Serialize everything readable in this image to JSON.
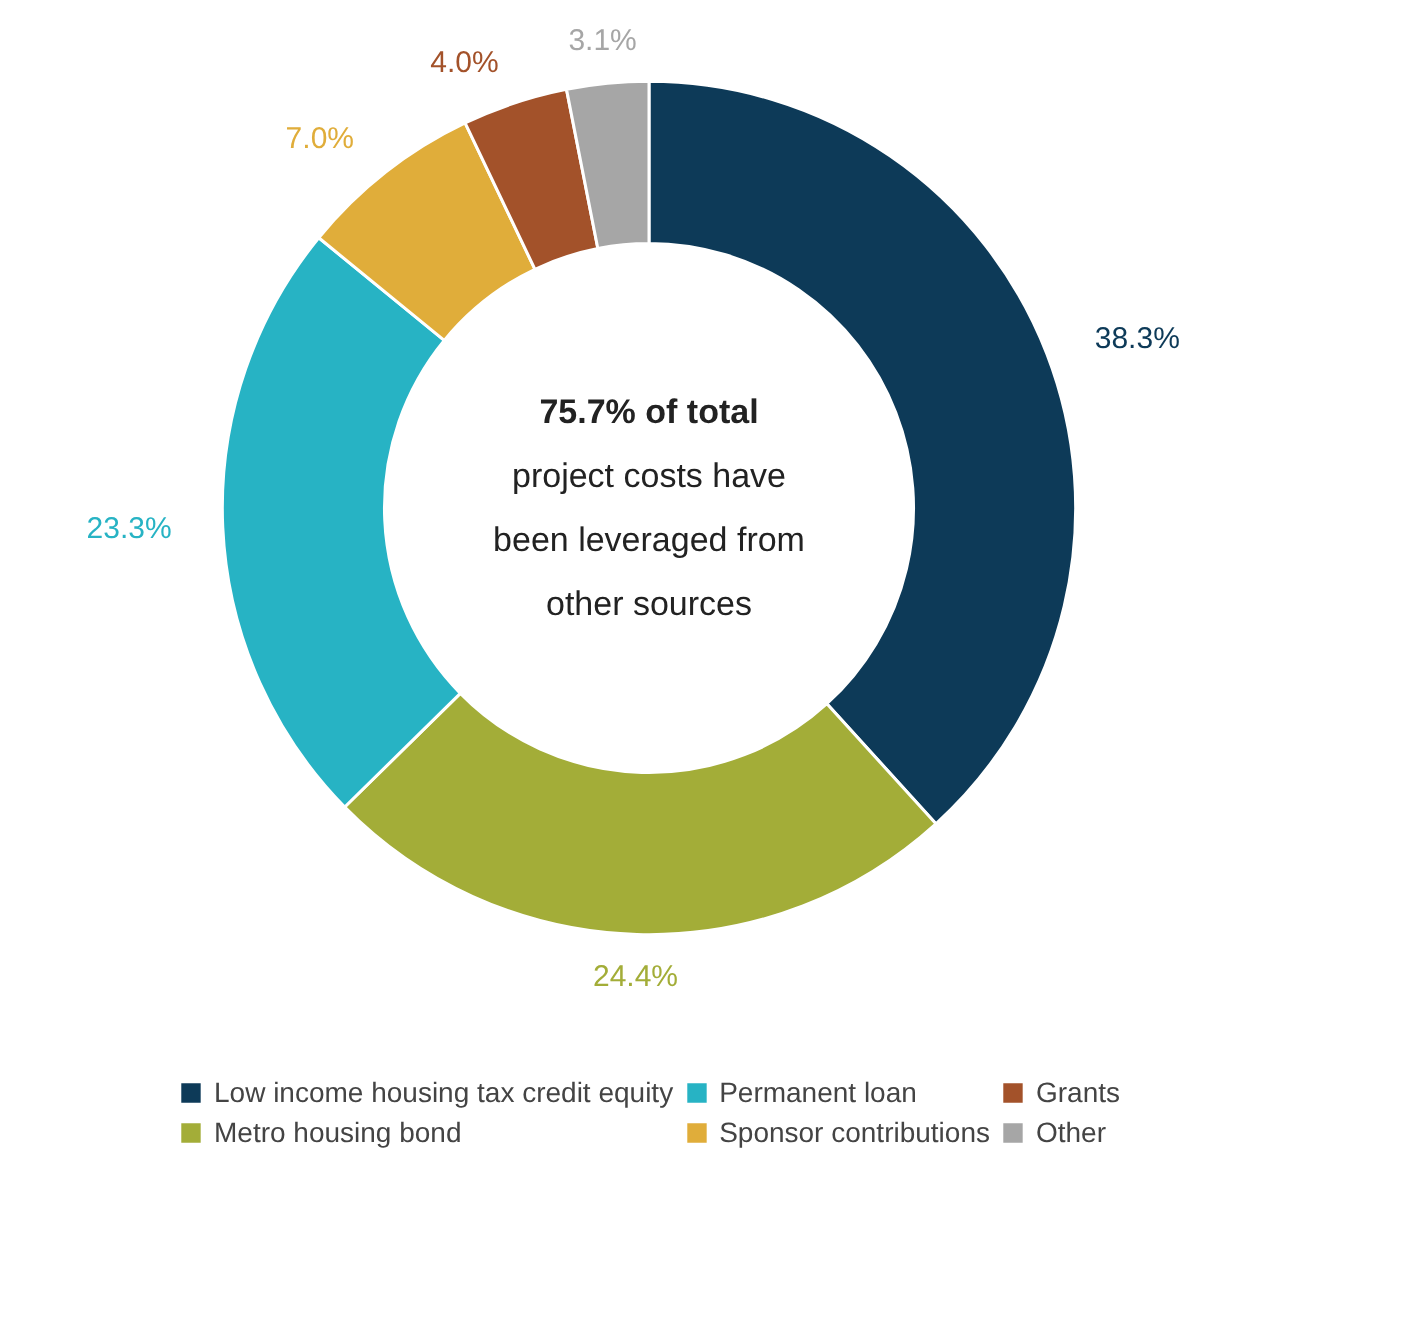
{
  "chart_data": {
    "type": "donut",
    "categories": [
      "Low income housing tax credit equity",
      "Metro housing bond",
      "Permanent loan",
      "Sponsor contributions",
      "Grants",
      "Other"
    ],
    "values": [
      38.3,
      24.4,
      23.3,
      7.0,
      4.0,
      3.1
    ],
    "colors": [
      "#0d3a58",
      "#a3ad38",
      "#27b3c4",
      "#e0ad3a",
      "#a3522a",
      "#a6a6a6"
    ],
    "value_labels": [
      "38.3%",
      "24.4%",
      "23.3%",
      "7.0%",
      "4.0%",
      "3.1%"
    ],
    "annotations": [
      "75.7% of total project costs have been leveraged from other sources"
    ],
    "legend": "bottom"
  }
}
